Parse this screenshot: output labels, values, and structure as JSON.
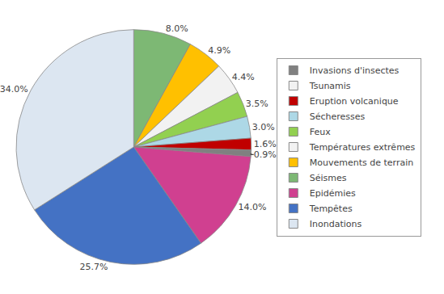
{
  "chart_data": {
    "type": "pie",
    "values": [
      8.0,
      4.9,
      4.4,
      3.5,
      3.0,
      1.6,
      0.9,
      14.0,
      25.7,
      34.0
    ],
    "value_labels": [
      "8.0%",
      "4.9%",
      "4.4%",
      "3.5%",
      "3.0%",
      "1.6%",
      "0.9%",
      "14.0%",
      "25.7%",
      "34.0%"
    ],
    "colors": [
      "#7db874",
      "#ffc000",
      "#f2f2f2",
      "#92d050",
      "#add8e6",
      "#c00000",
      "#808080",
      "#d04090",
      "#4472c4",
      "#dce6f1"
    ],
    "data_labels": true,
    "legend": "right",
    "legend_entries": [
      {
        "name": "Invasions d'insectes",
        "color": "#808080"
      },
      {
        "name": "Tsunamis",
        "color": "#f2f2f2"
      },
      {
        "name": "Eruption volcanique",
        "color": "#c00000"
      },
      {
        "name": "Sécheresses",
        "color": "#add8e6"
      },
      {
        "name": "Feux",
        "color": "#92d050"
      },
      {
        "name": "Températures extrêmes",
        "color": "#f2f2f2"
      },
      {
        "name": "Mouvements de terrain",
        "color": "#ffc000"
      },
      {
        "name": "Séismes",
        "color": "#7db874"
      },
      {
        "name": "Epidémies",
        "color": "#d04090"
      },
      {
        "name": "Tempêtes",
        "color": "#4472c4"
      },
      {
        "name": "Inondations",
        "color": "#dce6f1"
      }
    ]
  }
}
